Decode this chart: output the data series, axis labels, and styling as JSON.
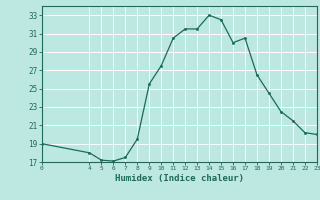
{
  "x": [
    0,
    4,
    5,
    6,
    7,
    8,
    9,
    10,
    11,
    12,
    13,
    14,
    15,
    16,
    17,
    18,
    19,
    20,
    21,
    22,
    23
  ],
  "y": [
    19.0,
    18.0,
    17.2,
    17.1,
    17.5,
    19.5,
    25.5,
    27.5,
    30.5,
    31.5,
    31.5,
    33.0,
    32.5,
    30.0,
    30.5,
    26.5,
    24.5,
    22.5,
    21.5,
    20.2,
    20.0
  ],
  "xlabel": "Humidex (Indice chaleur)",
  "xlim": [
    0,
    23
  ],
  "ylim": [
    17,
    34
  ],
  "yticks": [
    17,
    19,
    21,
    23,
    25,
    27,
    29,
    31,
    33
  ],
  "xticks": [
    0,
    4,
    5,
    6,
    7,
    8,
    9,
    10,
    11,
    12,
    13,
    14,
    15,
    16,
    17,
    18,
    19,
    20,
    21,
    22,
    23
  ],
  "line_color": "#1a6b5a",
  "marker_color": "#1a6b5a",
  "bg_color": "#bde8e2",
  "grid_color": "#ffffff",
  "label_color": "#1a6b5a",
  "tick_color": "#1a6b5a"
}
